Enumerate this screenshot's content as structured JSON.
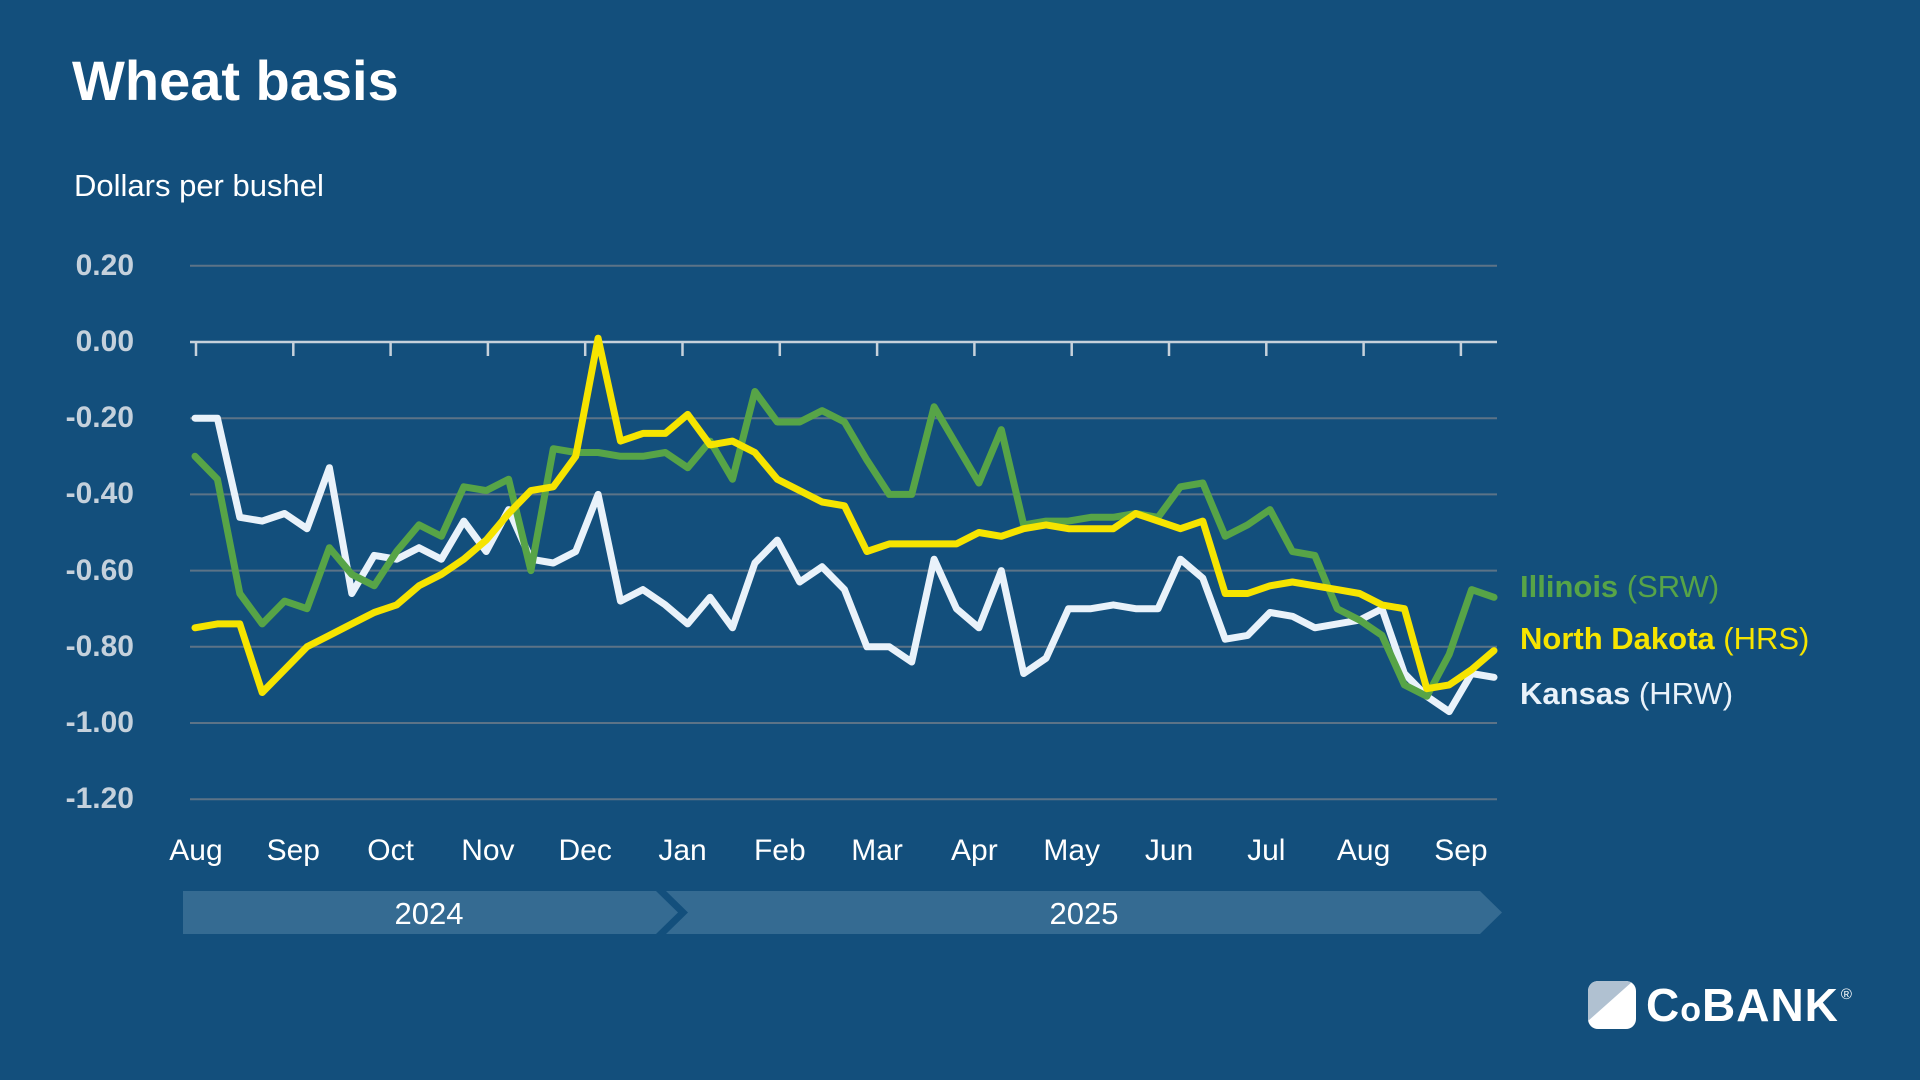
{
  "title": "Wheat basis",
  "subtitle": "Dollars per bushel",
  "colors": {
    "background": "#134F7C",
    "band": "#356B92",
    "grid": "#5C7387",
    "zero_line": "#C6D1DB",
    "axis_label": "#C5D1DC",
    "month_label": "#FFFFFF",
    "illinois": "#57A447",
    "north_dakota": "#F6E400",
    "kansas": "#E9F2FA",
    "logo_shield_light": "#B0C1D1",
    "logo_shield_white": "#FFFFFF"
  },
  "legend": [
    {
      "name": "Illinois",
      "suffix": " (SRW)",
      "color": "#57A447"
    },
    {
      "name": "North Dakota",
      "suffix": " (HRS)",
      "color": "#F6E400"
    },
    {
      "name": "Kansas",
      "suffix": " (HRW)",
      "color": "#E9F2FA"
    }
  ],
  "timeline": {
    "years": [
      {
        "label": "2024"
      },
      {
        "label": "2025"
      }
    ]
  },
  "logo": {
    "c": "C",
    "o": "o",
    "bank": "BANK",
    "reg": "®"
  },
  "chart_data": {
    "type": "line",
    "title": "Wheat basis",
    "ylabel": "Dollars per bushel",
    "frequency": "weekly",
    "x_start": "2024-08",
    "x_end": "2025-09",
    "ylim": [
      -1.2,
      0.2
    ],
    "grid": true,
    "legend_position": "right",
    "y_ticks": [
      0.2,
      0.0,
      -0.2,
      -0.4,
      -0.6,
      -0.8,
      -1.0,
      -1.2
    ],
    "y_tick_labels": [
      "0.20",
      "0.00",
      "-0.20",
      "-0.40",
      "-0.60",
      "-0.80",
      "-1.00",
      "-1.20"
    ],
    "months": [
      "Aug",
      "Sep",
      "Oct",
      "Nov",
      "Dec",
      "Jan",
      "Feb",
      "Mar",
      "Apr",
      "May",
      "Jun",
      "Jul",
      "Aug",
      "Sep"
    ],
    "series": [
      {
        "name": "Kansas (HRW)",
        "color": "#E9F2FA",
        "values": [
          -0.2,
          -0.2,
          -0.46,
          -0.47,
          -0.45,
          -0.49,
          -0.33,
          -0.66,
          -0.56,
          -0.57,
          -0.54,
          -0.57,
          -0.47,
          -0.55,
          -0.44,
          -0.57,
          -0.58,
          -0.55,
          -0.4,
          -0.68,
          -0.65,
          -0.69,
          -0.74,
          -0.67,
          -0.75,
          -0.58,
          -0.52,
          -0.63,
          -0.59,
          -0.65,
          -0.8,
          -0.8,
          -0.84,
          -0.57,
          -0.7,
          -0.75,
          -0.6,
          -0.87,
          -0.83,
          -0.7,
          -0.7,
          -0.69,
          -0.7,
          -0.7,
          -0.57,
          -0.62,
          -0.78,
          -0.77,
          -0.71,
          -0.72,
          -0.75,
          -0.74,
          -0.73,
          -0.7,
          -0.87,
          -0.93,
          -0.97,
          -0.87,
          -0.88
        ]
      },
      {
        "name": "Illinois (SRW)",
        "color": "#57A447",
        "values": [
          -0.3,
          -0.36,
          -0.66,
          -0.74,
          -0.68,
          -0.7,
          -0.54,
          -0.61,
          -0.64,
          -0.55,
          -0.48,
          -0.51,
          -0.38,
          -0.39,
          -0.36,
          -0.6,
          -0.28,
          -0.29,
          -0.29,
          -0.3,
          -0.3,
          -0.29,
          -0.33,
          -0.26,
          -0.36,
          -0.13,
          -0.21,
          -0.21,
          -0.18,
          -0.21,
          -0.31,
          -0.4,
          -0.4,
          -0.17,
          -0.27,
          -0.37,
          -0.23,
          -0.48,
          -0.47,
          -0.47,
          -0.46,
          -0.46,
          -0.45,
          -0.46,
          -0.38,
          -0.37,
          -0.51,
          -0.48,
          -0.44,
          -0.55,
          -0.56,
          -0.7,
          -0.73,
          -0.77,
          -0.9,
          -0.93,
          -0.82,
          -0.65,
          -0.67
        ]
      },
      {
        "name": "North Dakota (HRS)",
        "color": "#F6E400",
        "values": [
          -0.75,
          -0.74,
          -0.74,
          -0.92,
          -0.86,
          -0.8,
          -0.77,
          -0.74,
          -0.71,
          -0.69,
          -0.64,
          -0.61,
          -0.57,
          -0.52,
          -0.45,
          -0.39,
          -0.38,
          -0.3,
          0.01,
          -0.26,
          -0.24,
          -0.24,
          -0.19,
          -0.27,
          -0.26,
          -0.29,
          -0.36,
          -0.39,
          -0.42,
          -0.43,
          -0.55,
          -0.53,
          -0.53,
          -0.53,
          -0.53,
          -0.5,
          -0.51,
          -0.49,
          -0.48,
          -0.49,
          -0.49,
          -0.49,
          -0.45,
          -0.47,
          -0.49,
          -0.47,
          -0.66,
          -0.66,
          -0.64,
          -0.63,
          -0.64,
          -0.65,
          -0.66,
          -0.69,
          -0.7,
          -0.91,
          -0.9,
          -0.86,
          -0.81
        ]
      }
    ]
  }
}
